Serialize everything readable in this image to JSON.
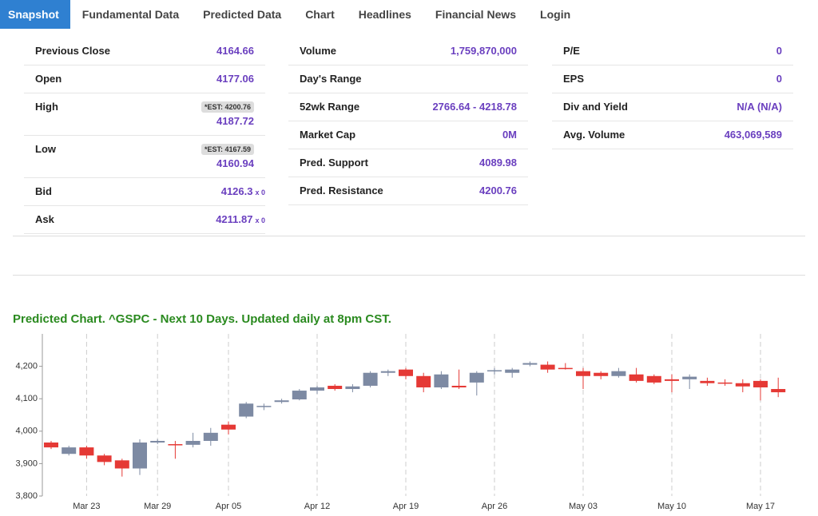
{
  "nav": [
    "Snapshot",
    "Fundamental Data",
    "Predicted Data",
    "Chart",
    "Headlines",
    "Financial News",
    "Login"
  ],
  "stats": [
    [
      {
        "label": "Previous Close",
        "value": "4164.66"
      },
      {
        "label": "Open",
        "value": "4177.06"
      },
      {
        "label": "High",
        "est": "*EST: 4200.76",
        "value": "4187.72"
      },
      {
        "label": "Low",
        "est": "*EST: 4167.59",
        "value": "4160.94"
      },
      {
        "label": "Bid",
        "value": "4126.3",
        "suffix": "x 0"
      },
      {
        "label": "Ask",
        "value": "4211.87",
        "suffix": "x 0"
      }
    ],
    [
      {
        "label": "Volume",
        "value": "1,759,870,000"
      },
      {
        "label": "Day's Range"
      },
      {
        "label": "52wk Range",
        "value": "2766.64 - 4218.78"
      },
      {
        "label": "Market Cap",
        "value": "0M"
      },
      {
        "label": "Pred. Support",
        "value": "4089.98"
      },
      {
        "label": "Pred. Resistance",
        "value": "4200.76"
      }
    ],
    [
      {
        "label": "P/E",
        "value": "0"
      },
      {
        "label": "EPS",
        "value": "0"
      },
      {
        "label": "Div and Yield",
        "value": "N/A (N/A)"
      },
      {
        "label": "Avg. Volume",
        "value": "463,069,589"
      }
    ]
  ],
  "chart_data": {
    "type": "candlestick",
    "title": "Predicted Chart. ^GSPC - Next 10 Days. Updated daily at 8pm CST.",
    "categories": [
      null,
      null,
      "Mar 23",
      null,
      null,
      null,
      "Mar 29",
      null,
      null,
      null,
      "Apr 05",
      null,
      null,
      null,
      null,
      "Apr 12",
      null,
      null,
      null,
      null,
      "Apr 19",
      null,
      null,
      null,
      null,
      "Apr 26",
      null,
      null,
      null,
      null,
      "May 03",
      null,
      null,
      null,
      null,
      "May 10",
      null,
      null,
      null,
      null,
      "May 17",
      null
    ],
    "open": [
      3965,
      3930,
      3950,
      3925,
      3910,
      3885,
      3965,
      3960,
      3958,
      3970,
      4020,
      4045,
      4075,
      4090,
      4098,
      4125,
      4140,
      4130,
      4140,
      4180,
      4190,
      4170,
      4135,
      4140,
      4150,
      4185,
      4180,
      4205,
      4205,
      4195,
      4185,
      4180,
      4170,
      4175,
      4170,
      4160,
      4160,
      4155,
      4150,
      4148,
      4155,
      4130
    ],
    "high": [
      3970,
      3955,
      3955,
      3930,
      3915,
      3975,
      3975,
      3970,
      3995,
      4010,
      4030,
      4090,
      4085,
      4100,
      4130,
      4140,
      4145,
      4145,
      4185,
      4190,
      4195,
      4180,
      4185,
      4190,
      4185,
      4195,
      4195,
      4215,
      4215,
      4210,
      4195,
      4185,
      4195,
      4195,
      4175,
      4175,
      4175,
      4165,
      4160,
      4160,
      4160,
      4165
    ],
    "low": [
      3945,
      3925,
      3915,
      3895,
      3860,
      3865,
      3960,
      3915,
      3950,
      3955,
      3990,
      4040,
      4065,
      4085,
      4095,
      4115,
      4125,
      4120,
      4135,
      4170,
      4160,
      4120,
      4130,
      4130,
      4110,
      4175,
      4165,
      4200,
      4180,
      4190,
      4130,
      4160,
      4165,
      4150,
      4145,
      4120,
      4130,
      4140,
      4140,
      4120,
      4095,
      4105
    ],
    "close": [
      3950,
      3950,
      3925,
      3905,
      3885,
      3965,
      3970,
      3958,
      3970,
      3995,
      4005,
      4085,
      4078,
      4095,
      4125,
      4135,
      4130,
      4138,
      4180,
      4185,
      4170,
      4135,
      4175,
      4135,
      4180,
      4188,
      4190,
      4210,
      4190,
      4192,
      4170,
      4170,
      4185,
      4155,
      4150,
      4155,
      4168,
      4148,
      4147,
      4138,
      4135,
      4120
    ],
    "up_color": "#7d8aa3",
    "down_color": "#e53935",
    "ylim": [
      3800,
      4300
    ],
    "yticks": [
      {
        "value": 3800,
        "label": "3,800"
      },
      {
        "value": 3900,
        "label": "3,900"
      },
      {
        "value": 4000,
        "label": "4,000"
      },
      {
        "value": 4100,
        "label": "4,100"
      },
      {
        "value": 4200,
        "label": "4,200"
      }
    ]
  }
}
